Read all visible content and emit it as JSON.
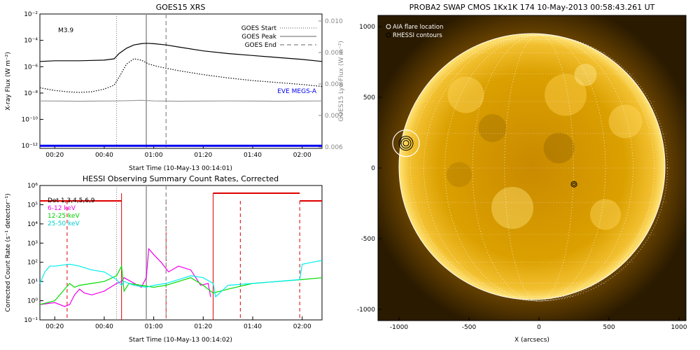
{
  "chart_data": [
    {
      "type": "line",
      "title": "GOES15 XRS",
      "xlabel": "Start Time (10-May-13 00:14:01)",
      "ylabel": "X-ray Flux (W m⁻²)",
      "ylabel_right": "GOES15 Lyα Flux (W m⁻²)",
      "x_ticks": [
        "00:20",
        "00:40",
        "01:00",
        "01:20",
        "01:40",
        "02:00"
      ],
      "x_tick_minutes": [
        20,
        40,
        60,
        80,
        100,
        120
      ],
      "xlim_minutes": [
        14,
        128
      ],
      "y_ticks": [
        "10⁻²",
        "10⁻⁴",
        "10⁻⁶",
        "10⁻⁸",
        "10⁻¹⁰",
        "10⁻¹²"
      ],
      "y_tick_exponents": [
        -2,
        -4,
        -6,
        -8,
        -10,
        -12
      ],
      "ylim_log": [
        -12.2,
        -2
      ],
      "y_right_ticks": [
        "0.010",
        "0.009",
        "0.008",
        "0.007",
        "0.006"
      ],
      "y_right_values": [
        0.01,
        0.009,
        0.008,
        0.007,
        0.006
      ],
      "flare_class": "M3.9",
      "legend_position": "top-right",
      "legend": [
        {
          "label": "GOES Start",
          "style": "dotted"
        },
        {
          "label": "GOES Peak",
          "style": "solid"
        },
        {
          "label": "GOES End",
          "style": "dashed"
        }
      ],
      "markers_minutes": {
        "start": 45,
        "peak": 57,
        "end": 65
      },
      "eve_label": "EVE MEGS-A",
      "series": [
        {
          "key": "long",
          "color": "#000000",
          "x": [
            14,
            20,
            30,
            40,
            44,
            46,
            49,
            52,
            55,
            57,
            60,
            65,
            70,
            80,
            90,
            100,
            110,
            120,
            128
          ],
          "y": [
            -5.6,
            -5.55,
            -5.55,
            -5.5,
            -5.4,
            -5.0,
            -4.6,
            -4.35,
            -4.25,
            -4.22,
            -4.25,
            -4.35,
            -4.5,
            -4.8,
            -5.0,
            -5.15,
            -5.3,
            -5.45,
            -5.6
          ]
        },
        {
          "key": "short",
          "color": "#000000",
          "dotted": true,
          "x": [
            14,
            20,
            25,
            30,
            35,
            40,
            44,
            46,
            49,
            52,
            55,
            58,
            62,
            66,
            70,
            80,
            90,
            100,
            110,
            120,
            128
          ],
          "y": [
            -7.6,
            -7.8,
            -7.9,
            -7.95,
            -7.9,
            -7.7,
            -7.4,
            -6.8,
            -5.8,
            -5.4,
            -5.5,
            -5.8,
            -6.0,
            -6.15,
            -6.3,
            -6.6,
            -6.85,
            -7.05,
            -7.2,
            -7.35,
            -7.5
          ]
        },
        {
          "key": "lya",
          "color": "#999999",
          "x": [
            14,
            30,
            45,
            55,
            60,
            70,
            90,
            110,
            128
          ],
          "y": [
            -8.6,
            -8.62,
            -8.6,
            -8.55,
            -8.6,
            -8.62,
            -8.6,
            -8.62,
            -8.6
          ]
        },
        {
          "key": "eve",
          "color": "#0000ee",
          "x": [
            14,
            128
          ],
          "y": [
            -12,
            -12
          ]
        }
      ]
    },
    {
      "type": "line",
      "title": "HESSI Observing Summary Count Rates, Corrected",
      "xlabel": "Start Time (10-May-13 00:14:02)",
      "ylabel": "Corrected Count Rate (s⁻¹ detector⁻¹)",
      "x_ticks": [
        "00:20",
        "00:40",
        "01:00",
        "01:20",
        "01:40",
        "02:00"
      ],
      "x_tick_minutes": [
        20,
        40,
        60,
        80,
        100,
        120
      ],
      "xlim_minutes": [
        14,
        128
      ],
      "y_ticks": [
        "10⁶",
        "10⁵",
        "10⁴",
        "10³",
        "10²",
        "10¹",
        "10⁰",
        "10⁻¹"
      ],
      "y_tick_exponents": [
        6,
        5,
        4,
        3,
        2,
        1,
        0,
        -1
      ],
      "ylim_log": [
        -1,
        6
      ],
      "det_label": "Det 1,3,4,5,6,9",
      "legend_position": "top-left",
      "legend": [
        {
          "label": "6-12 keV",
          "color": "#ee00ee"
        },
        {
          "label": "12-25 keV",
          "color": "#00dd00"
        },
        {
          "label": "25-50 keV",
          "color": "#00eeee"
        }
      ],
      "night_dashes_minutes": [
        25,
        65,
        95,
        119
      ],
      "night_solid_minutes": [
        47,
        84
      ],
      "series": [
        {
          "name": "6-12 keV",
          "color": "#ee00ee",
          "x": [
            14,
            20,
            24,
            26,
            28,
            30,
            32,
            35,
            40,
            45,
            47,
            48,
            55,
            57,
            58,
            60,
            63,
            66,
            70,
            75,
            79,
            82,
            83
          ],
          "y": [
            -0.2,
            -0.1,
            -0.3,
            -0.2,
            0.3,
            0.6,
            0.4,
            0.3,
            0.5,
            0.9,
            1.0,
            1.2,
            0.7,
            1.2,
            2.7,
            2.4,
            2.0,
            1.5,
            1.8,
            1.6,
            0.8,
            0.9,
            0.2
          ]
        },
        {
          "name": "12-25 keV",
          "color": "#00dd00",
          "x": [
            14,
            20,
            24,
            26,
            28,
            30,
            35,
            40,
            45,
            47,
            48,
            50,
            55,
            60,
            65,
            70,
            75,
            80,
            84,
            90,
            100,
            110,
            120,
            128
          ],
          "y": [
            -0.2,
            0.0,
            0.6,
            0.9,
            0.7,
            0.8,
            0.9,
            1.0,
            1.3,
            1.8,
            0.5,
            0.9,
            0.8,
            0.7,
            0.8,
            1.0,
            1.2,
            0.8,
            0.4,
            0.6,
            0.9,
            1.0,
            1.1,
            1.2
          ]
        },
        {
          "name": "25-50 keV",
          "color": "#00eeee",
          "x": [
            14,
            16,
            18,
            20,
            26,
            30,
            35,
            40,
            45,
            47,
            48,
            52,
            57,
            60,
            65,
            70,
            75,
            80,
            84,
            85,
            90,
            100,
            110,
            119,
            120,
            124,
            128
          ],
          "y": [
            0.9,
            1.5,
            1.8,
            1.8,
            1.9,
            1.8,
            1.6,
            1.5,
            1.1,
            0.8,
            1.0,
            0.8,
            0.7,
            0.8,
            0.9,
            1.1,
            1.3,
            1.2,
            0.9,
            0.2,
            0.8,
            0.9,
            1.0,
            1.1,
            1.9,
            2.0,
            2.1
          ]
        }
      ],
      "attenuator": [
        {
          "x": [
            14,
            47
          ],
          "y": 5.2
        },
        {
          "x": [
            84,
            119
          ],
          "y": 5.6
        },
        {
          "x": [
            119,
            128
          ],
          "y": 5.2
        }
      ]
    },
    {
      "type": "image",
      "title": "PROBA2 SWAP CMOS 1Kx1K 174 10-May-2013 00:58:43.261 UT",
      "xlabel": "X (arcsecs)",
      "ylabel": "",
      "x_ticks": [
        "-1000",
        "-500",
        "0",
        "500",
        "1000"
      ],
      "x_tick_values": [
        -1000,
        -500,
        0,
        500,
        1000
      ],
      "y_ticks": [
        "1000",
        "500",
        "0",
        "-500",
        "-1000"
      ],
      "y_tick_values": [
        1000,
        500,
        0,
        -500,
        -1000
      ],
      "xlim": [
        -1150,
        1050
      ],
      "ylim": [
        -1080,
        1080
      ],
      "solar_radius_arcsec": 950,
      "legend_position": "top-left",
      "legend": [
        {
          "label": "AIA flare location"
        },
        {
          "label": "RHESSI contours"
        }
      ],
      "flare_location": [
        -950,
        175
      ],
      "second_source": [
        250,
        -115
      ],
      "colors": {
        "disk": "#e0a000",
        "limb": "#ffe070",
        "background": "#2a1a00"
      }
    }
  ]
}
